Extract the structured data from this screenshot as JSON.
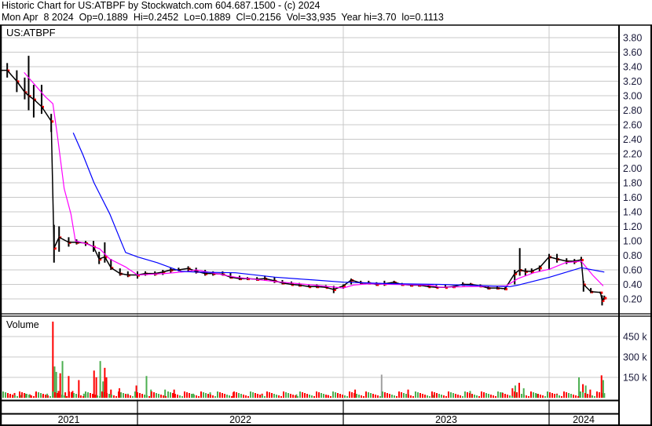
{
  "header": {
    "line1": "Historic Chart for US:ATBPF by Stockwatch.com 604.687.1500 - (c) 2024",
    "line2": "Mon Apr  8 2024  Op=0.1889  Hi=0.2452  Lo=0.1889  Cl=0.2156  Vol=33,935  Year hi=3.70  lo=0.1113"
  },
  "colors": {
    "bar": "#000000",
    "close_tick": "#ff0000",
    "ma_short": "#ff00ff",
    "ma_long": "#0000ff",
    "vol_up": "#4caf50",
    "vol_down": "#ff0000",
    "vol_flat": "#a0a0a0",
    "grid": "#c8c8c8"
  },
  "chart_data": [
    {
      "type": "line",
      "title": "US:ATBPF",
      "xlim": [
        "2021-05-01",
        "2024-04-08"
      ],
      "ylim": [
        0,
        3.95
      ],
      "yticks": [
        "0.20",
        "0.40",
        "0.60",
        "0.80",
        "1.00",
        "1.20",
        "1.40",
        "1.60",
        "1.80",
        "2.00",
        "2.20",
        "2.40",
        "2.60",
        "2.80",
        "3.00",
        "3.20",
        "3.40",
        "3.60",
        "3.80"
      ],
      "xtick_labels": [
        "2021",
        "2022",
        "2023",
        "2024"
      ],
      "grid": true,
      "price_columns": [
        "date",
        "high",
        "low",
        "close"
      ],
      "prices": [
        [
          "2021-05-01",
          3.7,
          3.25,
          3.35
        ],
        [
          "2021-05-15",
          3.45,
          3.25,
          3.35
        ],
        [
          "2021-06-01",
          3.35,
          3.05,
          3.2
        ],
        [
          "2021-06-15",
          3.25,
          2.95,
          3.05
        ],
        [
          "2021-06-22",
          3.55,
          2.8,
          3.0
        ],
        [
          "2021-07-01",
          3.15,
          2.7,
          2.95
        ],
        [
          "2021-07-15",
          3.15,
          2.75,
          2.85
        ],
        [
          "2021-08-01",
          2.75,
          2.5,
          2.65
        ],
        [
          "2021-08-06",
          1.22,
          0.7,
          0.9
        ],
        [
          "2021-08-15",
          1.2,
          0.85,
          1.05
        ],
        [
          "2021-09-01",
          1.05,
          0.92,
          0.98
        ],
        [
          "2021-09-15",
          1.02,
          0.95,
          0.98
        ],
        [
          "2021-10-01",
          1.0,
          0.93,
          0.97
        ],
        [
          "2021-10-15",
          1.0,
          0.85,
          0.92
        ],
        [
          "2021-10-25",
          0.85,
          0.68,
          0.75
        ],
        [
          "2021-11-04",
          0.98,
          0.7,
          0.78
        ],
        [
          "2021-11-15",
          0.75,
          0.6,
          0.63
        ],
        [
          "2021-12-01",
          0.62,
          0.52,
          0.55
        ],
        [
          "2021-12-15",
          0.58,
          0.5,
          0.53
        ],
        [
          "2022-01-01",
          0.58,
          0.48,
          0.53
        ],
        [
          "2022-01-15",
          0.58,
          0.52,
          0.55
        ],
        [
          "2022-02-01",
          0.58,
          0.52,
          0.55
        ],
        [
          "2022-02-15",
          0.6,
          0.53,
          0.57
        ],
        [
          "2022-03-01",
          0.63,
          0.56,
          0.6
        ],
        [
          "2022-03-15",
          0.63,
          0.58,
          0.6
        ],
        [
          "2022-04-01",
          0.65,
          0.58,
          0.62
        ],
        [
          "2022-04-15",
          0.63,
          0.55,
          0.58
        ],
        [
          "2022-05-01",
          0.6,
          0.52,
          0.55
        ],
        [
          "2022-05-15",
          0.58,
          0.52,
          0.55
        ],
        [
          "2022-06-01",
          0.58,
          0.52,
          0.54
        ],
        [
          "2022-06-15",
          0.56,
          0.48,
          0.5
        ],
        [
          "2022-07-01",
          0.52,
          0.46,
          0.48
        ],
        [
          "2022-07-15",
          0.5,
          0.46,
          0.48
        ],
        [
          "2022-08-01",
          0.5,
          0.45,
          0.47
        ],
        [
          "2022-08-15",
          0.52,
          0.45,
          0.48
        ],
        [
          "2022-09-01",
          0.5,
          0.42,
          0.45
        ],
        [
          "2022-09-15",
          0.46,
          0.4,
          0.42
        ],
        [
          "2022-10-01",
          0.44,
          0.39,
          0.4
        ],
        [
          "2022-10-15",
          0.42,
          0.37,
          0.39
        ],
        [
          "2022-11-01",
          0.4,
          0.36,
          0.37
        ],
        [
          "2022-11-15",
          0.4,
          0.35,
          0.37
        ],
        [
          "2022-12-01",
          0.39,
          0.35,
          0.36
        ],
        [
          "2022-12-15",
          0.38,
          0.28,
          0.33
        ],
        [
          "2023-01-01",
          0.4,
          0.34,
          0.38
        ],
        [
          "2023-01-15",
          0.48,
          0.4,
          0.46
        ],
        [
          "2023-02-01",
          0.45,
          0.4,
          0.42
        ],
        [
          "2023-02-15",
          0.45,
          0.4,
          0.42
        ],
        [
          "2023-03-01",
          0.43,
          0.38,
          0.4
        ],
        [
          "2023-03-15",
          0.45,
          0.38,
          0.41
        ],
        [
          "2023-04-01",
          0.45,
          0.4,
          0.43
        ],
        [
          "2023-04-15",
          0.42,
          0.38,
          0.4
        ],
        [
          "2023-05-01",
          0.41,
          0.37,
          0.39
        ],
        [
          "2023-05-15",
          0.4,
          0.37,
          0.39
        ],
        [
          "2023-06-01",
          0.4,
          0.36,
          0.37
        ],
        [
          "2023-06-15",
          0.39,
          0.35,
          0.36
        ],
        [
          "2023-07-01",
          0.39,
          0.35,
          0.36
        ],
        [
          "2023-07-15",
          0.38,
          0.35,
          0.37
        ],
        [
          "2023-08-01",
          0.43,
          0.38,
          0.4
        ],
        [
          "2023-08-15",
          0.42,
          0.38,
          0.4
        ],
        [
          "2023-09-01",
          0.4,
          0.36,
          0.38
        ],
        [
          "2023-09-15",
          0.38,
          0.33,
          0.35
        ],
        [
          "2023-10-01",
          0.37,
          0.33,
          0.35
        ],
        [
          "2023-10-15",
          0.36,
          0.32,
          0.34
        ],
        [
          "2023-11-01",
          0.6,
          0.4,
          0.55
        ],
        [
          "2023-11-10",
          0.9,
          0.52,
          0.6
        ],
        [
          "2023-11-20",
          0.62,
          0.52,
          0.58
        ],
        [
          "2023-12-01",
          0.62,
          0.55,
          0.58
        ],
        [
          "2023-12-15",
          0.66,
          0.58,
          0.63
        ],
        [
          "2024-01-01",
          0.82,
          0.6,
          0.78
        ],
        [
          "2024-01-15",
          0.82,
          0.7,
          0.75
        ],
        [
          "2024-02-01",
          0.76,
          0.68,
          0.72
        ],
        [
          "2024-02-15",
          0.75,
          0.68,
          0.72
        ],
        [
          "2024-02-27",
          0.78,
          0.7,
          0.74
        ],
        [
          "2024-03-02",
          0.45,
          0.3,
          0.4
        ],
        [
          "2024-03-15",
          0.35,
          0.28,
          0.3
        ],
        [
          "2024-04-01",
          0.3,
          0.27,
          0.29
        ],
        [
          "2024-04-04",
          0.25,
          0.11,
          0.18
        ],
        [
          "2024-04-08",
          0.2452,
          0.1889,
          0.2156
        ]
      ],
      "series": [
        {
          "color": "#ff00ff",
          "points": [
            [
              "2021-06-14",
              3.32
            ],
            [
              "2021-07-21",
              2.99
            ],
            [
              "2021-08-04",
              2.89
            ],
            [
              "2021-08-12",
              2.45
            ],
            [
              "2021-08-24",
              1.72
            ],
            [
              "2021-09-05",
              1.37
            ],
            [
              "2021-09-13",
              1.0
            ],
            [
              "2021-10-02",
              0.96
            ],
            [
              "2021-10-26",
              0.89
            ],
            [
              "2021-11-13",
              0.75
            ],
            [
              "2021-12-11",
              0.64
            ],
            [
              "2022-01-01",
              0.53
            ],
            [
              "2022-02-19",
              0.55
            ],
            [
              "2022-04-02",
              0.58
            ],
            [
              "2022-04-15",
              0.6
            ],
            [
              "2022-06-24",
              0.5
            ],
            [
              "2022-09-02",
              0.44
            ],
            [
              "2022-11-10",
              0.39
            ],
            [
              "2023-01-01",
              0.35
            ],
            [
              "2023-01-19",
              0.39
            ],
            [
              "2023-02-16",
              0.41
            ],
            [
              "2023-03-28",
              0.4
            ],
            [
              "2023-06-06",
              0.39
            ],
            [
              "2023-06-20",
              0.36
            ],
            [
              "2023-08-15",
              0.37
            ],
            [
              "2023-10-17",
              0.38
            ],
            [
              "2023-11-07",
              0.48
            ],
            [
              "2023-12-05",
              0.56
            ],
            [
              "2024-01-02",
              0.61
            ],
            [
              "2024-01-30",
              0.7
            ],
            [
              "2024-02-27",
              0.72
            ],
            [
              "2024-03-18",
              0.53
            ],
            [
              "2024-04-06",
              0.38
            ]
          ]
        },
        {
          "color": "#0000ff",
          "points": [
            [
              "2021-09-09",
              2.49
            ],
            [
              "2021-09-26",
              2.19
            ],
            [
              "2021-10-16",
              1.8
            ],
            [
              "2021-11-13",
              1.37
            ],
            [
              "2021-12-04",
              0.97
            ],
            [
              "2021-12-11",
              0.84
            ],
            [
              "2022-01-01",
              0.78
            ],
            [
              "2022-02-05",
              0.7
            ],
            [
              "2022-03-19",
              0.58
            ],
            [
              "2022-04-15",
              0.57
            ],
            [
              "2022-06-24",
              0.56
            ],
            [
              "2022-09-02",
              0.5
            ],
            [
              "2022-11-10",
              0.46
            ],
            [
              "2023-01-01",
              0.43
            ],
            [
              "2023-03-28",
              0.41
            ],
            [
              "2023-06-20",
              0.4
            ],
            [
              "2023-10-24",
              0.37
            ],
            [
              "2023-11-07",
              0.39
            ],
            [
              "2024-01-02",
              0.5
            ],
            [
              "2024-02-27",
              0.63
            ],
            [
              "2024-04-08",
              0.57
            ]
          ]
        }
      ]
    },
    {
      "type": "bar",
      "title": "Volume",
      "ylim": [
        0,
        600000
      ],
      "yticks": [
        "150 k",
        "300 k",
        "450 k"
      ],
      "ytick_values": [
        150000,
        300000,
        450000
      ],
      "columns": [
        "date",
        "volume",
        "direction"
      ],
      "bars": [
        [
          "2021-05-03",
          25000,
          "down"
        ],
        [
          "2021-05-12",
          20000,
          "up"
        ],
        [
          "2021-05-20",
          15000,
          "down"
        ],
        [
          "2021-05-28",
          35000,
          "down"
        ],
        [
          "2021-06-08",
          20000,
          "up"
        ],
        [
          "2021-06-16",
          30000,
          "up"
        ],
        [
          "2021-06-24",
          25000,
          "down"
        ],
        [
          "2021-07-05",
          40000,
          "down"
        ],
        [
          "2021-07-14",
          20000,
          "down"
        ],
        [
          "2021-07-25",
          30000,
          "up"
        ],
        [
          "2021-08-04",
          560000,
          "down"
        ],
        [
          "2021-08-07",
          230000,
          "up"
        ],
        [
          "2021-08-10",
          190000,
          "up"
        ],
        [
          "2021-08-14",
          50000,
          "down"
        ],
        [
          "2021-08-17",
          180000,
          "down"
        ],
        [
          "2021-08-21",
          270000,
          "up"
        ],
        [
          "2021-08-26",
          40000,
          "down"
        ],
        [
          "2021-09-01",
          160000,
          "down"
        ],
        [
          "2021-09-08",
          50000,
          "down"
        ],
        [
          "2021-09-19",
          130000,
          "down"
        ],
        [
          "2021-09-28",
          30000,
          "up"
        ],
        [
          "2021-10-05",
          30000,
          "down"
        ],
        [
          "2021-10-16",
          200000,
          "down"
        ],
        [
          "2021-10-20",
          150000,
          "down"
        ],
        [
          "2021-10-27",
          270000,
          "up"
        ],
        [
          "2021-11-01",
          120000,
          "up"
        ],
        [
          "2021-11-04",
          220000,
          "down"
        ],
        [
          "2021-11-07",
          150000,
          "down"
        ],
        [
          "2021-11-15",
          60000,
          "down"
        ],
        [
          "2021-11-30",
          70000,
          "down"
        ],
        [
          "2021-12-15",
          30000,
          "up"
        ],
        [
          "2021-12-30",
          90000,
          "down"
        ],
        [
          "2022-01-17",
          160000,
          "up"
        ],
        [
          "2022-01-25",
          60000,
          "up"
        ],
        [
          "2022-02-19",
          60000,
          "up"
        ],
        [
          "2022-03-07",
          60000,
          "down"
        ],
        [
          "2022-04-10",
          30000,
          "up"
        ],
        [
          "2022-05-10",
          40000,
          "up"
        ],
        [
          "2022-06-20",
          40000,
          "down"
        ],
        [
          "2022-08-10",
          30000,
          "down"
        ],
        [
          "2022-10-10",
          25000,
          "up"
        ],
        [
          "2022-12-05",
          20000,
          "down"
        ],
        [
          "2023-01-22",
          60000,
          "down"
        ],
        [
          "2023-03-10",
          170000,
          "flat"
        ],
        [
          "2023-04-26",
          60000,
          "down"
        ],
        [
          "2023-06-10",
          20000,
          "up"
        ],
        [
          "2023-08-14",
          50000,
          "up"
        ],
        [
          "2023-10-10",
          40000,
          "up"
        ],
        [
          "2023-10-28",
          70000,
          "down"
        ],
        [
          "2023-11-02",
          90000,
          "up"
        ],
        [
          "2023-11-09",
          110000,
          "down"
        ],
        [
          "2023-11-17",
          70000,
          "up"
        ],
        [
          "2023-12-10",
          30000,
          "up"
        ],
        [
          "2024-01-15",
          30000,
          "down"
        ],
        [
          "2024-02-23",
          150000,
          "up"
        ],
        [
          "2024-03-01",
          100000,
          "down"
        ],
        [
          "2024-03-06",
          90000,
          "up"
        ],
        [
          "2024-03-14",
          60000,
          "down"
        ],
        [
          "2024-04-03",
          165000,
          "down"
        ],
        [
          "2024-04-06",
          130000,
          "up"
        ],
        [
          "2024-04-08",
          34000,
          "up"
        ]
      ]
    }
  ]
}
